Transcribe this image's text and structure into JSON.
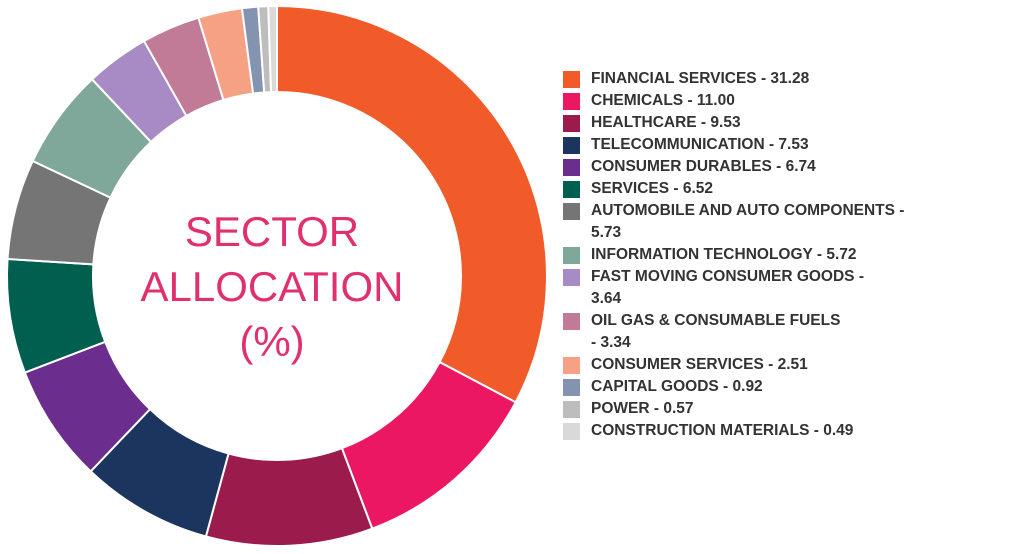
{
  "chart_data": {
    "type": "pie",
    "title": "SECTOR ALLOCATION (%)",
    "title_lines": [
      "SECTOR",
      "ALLOCATION",
      "(%)"
    ],
    "donut": true,
    "legend_position": "right",
    "start": "top, clockwise",
    "slices": [
      {
        "label": "FINANCIAL SERVICES - 31.28",
        "name": "FINANCIAL SERVICES",
        "value": 31.28,
        "color": "#f15a29"
      },
      {
        "label": "CHEMICALS - 11.00",
        "name": "CHEMICALS",
        "value": 11.0,
        "color": "#ec1763"
      },
      {
        "label": "HEALTHCARE - 9.53",
        "name": "HEALTHCARE",
        "value": 9.53,
        "color": "#9b1b4d"
      },
      {
        "label": "TELECOMMUNICATION - 7.53",
        "name": "TELECOMMUNICATION",
        "value": 7.53,
        "color": "#1c355e"
      },
      {
        "label": "CONSUMER DURABLES - 6.74",
        "name": "CONSUMER DURABLES",
        "value": 6.74,
        "color": "#6b2d8e"
      },
      {
        "label": "SERVICES - 6.52",
        "name": "SERVICES",
        "value": 6.52,
        "color": "#005f4f"
      },
      {
        "label": "AUTOMOBILE AND AUTO COMPONENTS - 5.73",
        "name": "AUTOMOBILE AND AUTO COMPONENTS",
        "value": 5.73,
        "color": "#757575"
      },
      {
        "label": "INFORMATION TECHNOLOGY - 5.72",
        "name": "INFORMATION TECHNOLOGY",
        "value": 5.72,
        "color": "#7fa89a"
      },
      {
        "label": "FAST MOVING CONSUMER GOODS - 3.64",
        "name": "FAST MOVING CONSUMER GOODS",
        "value": 3.64,
        "color": "#a88bc4"
      },
      {
        "label": "OIL GAS & CONSUMABLE FUELS - 3.34",
        "name": "OIL GAS & CONSUMABLE FUELS",
        "value": 3.34,
        "color": "#c27b97"
      },
      {
        "label": "CONSUMER SERVICES - 2.51",
        "name": "CONSUMER SERVICES",
        "value": 2.51,
        "color": "#f7a184"
      },
      {
        "label": "CAPITAL GOODS - 0.92",
        "name": "CAPITAL GOODS",
        "value": 0.92,
        "color": "#8493b0"
      },
      {
        "label": "POWER - 0.57",
        "name": "POWER",
        "value": 0.57,
        "color": "#bdbdbd"
      },
      {
        "label": "CONSTRUCTION MATERIALS - 0.49",
        "name": "CONSTRUCTION MATERIALS",
        "value": 0.49,
        "color": "#d9d9d9"
      }
    ]
  }
}
